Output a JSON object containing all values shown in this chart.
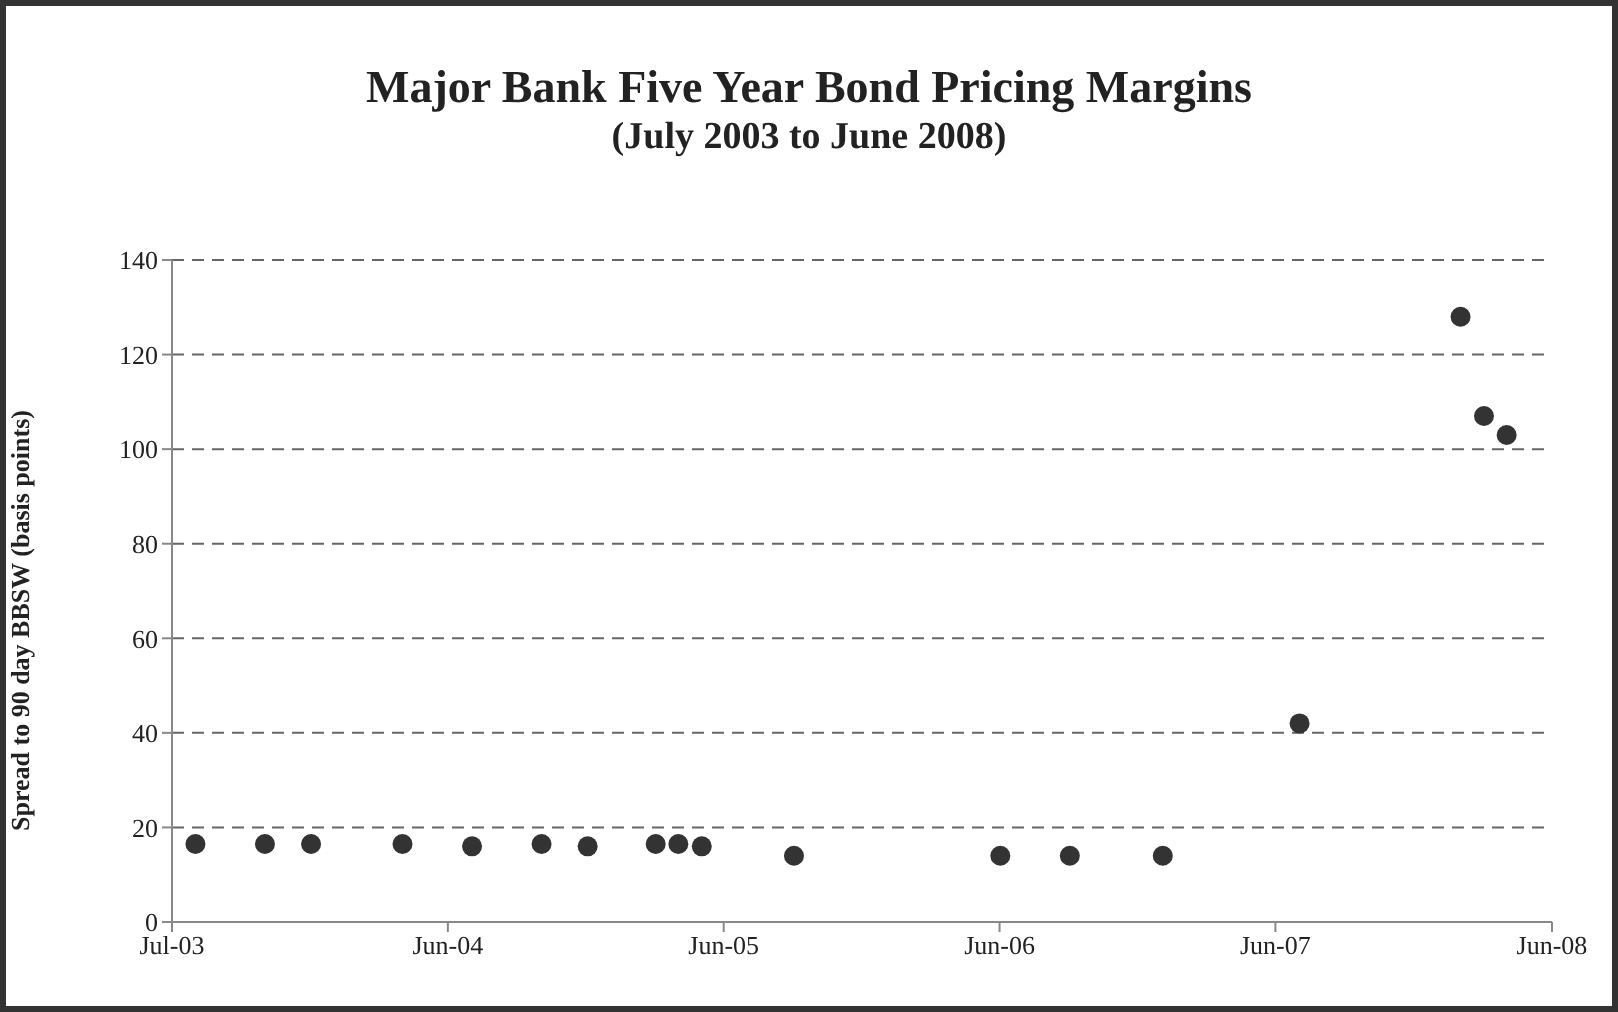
{
  "chart_data": {
    "type": "scatter",
    "title": "Major Bank Five Year Bond Pricing Margins",
    "subtitle": "(July 2003 to June 2008)",
    "ylabel": "Spread to 90 day BBSW (basis points)",
    "x": [
      "2003-08-01",
      "2003-11-01",
      "2004-01-01",
      "2004-05-01",
      "2004-08-01",
      "2004-11-01",
      "2005-01-01",
      "2005-04-01",
      "2005-05-01",
      "2005-06-01",
      "2005-10-01",
      "2006-07-01",
      "2006-10-01",
      "2007-02-01",
      "2007-08-01",
      "2008-03-01",
      "2008-04-01",
      "2008-05-01"
    ],
    "series": [
      {
        "color": "#333333",
        "values": [
          16.5,
          16.5,
          16.5,
          16.5,
          16,
          16.5,
          16,
          16.5,
          16.5,
          16,
          14,
          14,
          14,
          14,
          42,
          128,
          107,
          103
        ]
      }
    ],
    "xlim": [
      "2003-07-01",
      "2008-06-30"
    ],
    "xticks": [
      {
        "value": "2003-07-01",
        "label": "Jul-03"
      },
      {
        "value": "2004-06-30",
        "label": "Jun-04"
      },
      {
        "value": "2005-06-30",
        "label": "Jun-05"
      },
      {
        "value": "2006-06-30",
        "label": "Jun-06"
      },
      {
        "value": "2007-06-30",
        "label": "Jun-07"
      },
      {
        "value": "2008-06-30",
        "label": "Jun-08"
      }
    ],
    "ylim": [
      0,
      140
    ],
    "yticks": [
      0,
      20,
      40,
      60,
      80,
      100,
      120,
      140
    ],
    "grid": "y",
    "marker": "circle"
  }
}
